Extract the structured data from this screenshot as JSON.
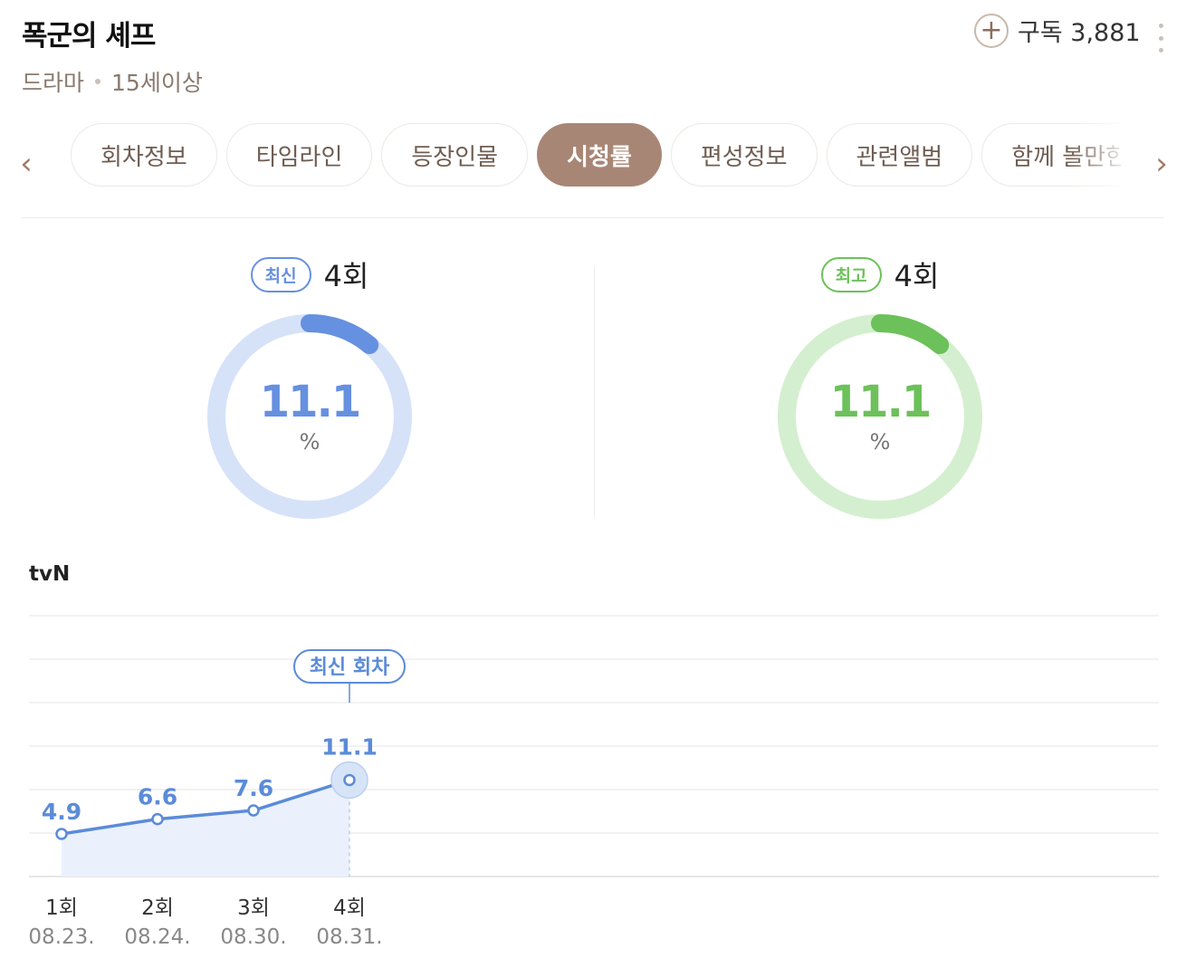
{
  "header": {
    "title": "폭군의 셰프",
    "genre": "드라마",
    "rating": "15세이상",
    "subscribe_label": "구독 3,881"
  },
  "tabs": [
    {
      "label": "회차정보",
      "active": false
    },
    {
      "label": "타임라인",
      "active": false
    },
    {
      "label": "등장인물",
      "active": false
    },
    {
      "label": "시청률",
      "active": true
    },
    {
      "label": "편성정보",
      "active": false
    },
    {
      "label": "관련앨범",
      "active": false
    },
    {
      "label": "함께 볼만한",
      "active": false
    }
  ],
  "latest": {
    "badge": "최신",
    "episode": "4회",
    "value": "11.1",
    "unit": "%",
    "color": "#6690e0",
    "track": "#d6e2f8"
  },
  "best": {
    "badge": "최고",
    "episode": "4회",
    "value": "11.1",
    "unit": "%",
    "color": "#6cc15a",
    "track": "#d4efcf"
  },
  "chart_section": {
    "channel": "tvN",
    "callout": "최신 회차"
  },
  "chart_data": {
    "type": "area",
    "categories": [
      "1회",
      "2회",
      "3회",
      "4회"
    ],
    "dates": [
      "08.23.",
      "08.24.",
      "08.30.",
      "08.31."
    ],
    "values": [
      4.9,
      6.6,
      7.6,
      11.1
    ],
    "data_labels": [
      "4.9",
      "6.6",
      "7.6",
      "11.1"
    ],
    "ylim": [
      0,
      30
    ],
    "grid": true,
    "line_color": "#5b8bd9",
    "fill_color": "#eaf1fd"
  }
}
